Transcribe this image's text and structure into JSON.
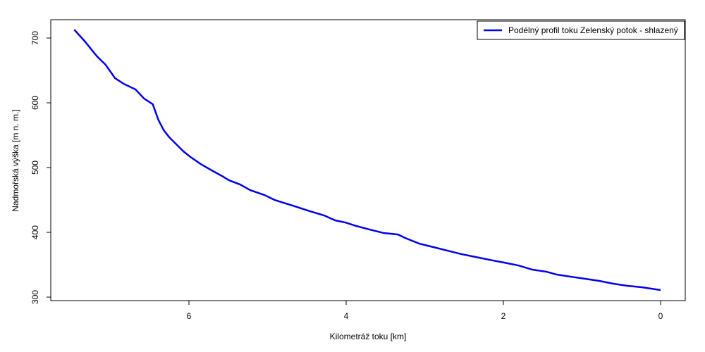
{
  "chart_data": {
    "type": "line",
    "xlabel": "Kilometráž toku [km]",
    "ylabel": "Nadmořská výška [m n. m.]",
    "x": [
      7.46,
      7.33,
      7.17,
      7.06,
      6.94,
      6.83,
      6.68,
      6.57,
      6.46,
      6.39,
      6.32,
      6.25,
      6.16,
      6.07,
      5.98,
      5.85,
      5.71,
      5.58,
      5.49,
      5.35,
      5.22,
      5.04,
      4.91,
      4.68,
      4.46,
      4.28,
      4.14,
      4.01,
      3.87,
      3.7,
      3.52,
      3.34,
      3.25,
      3.07,
      2.89,
      2.71,
      2.53,
      2.31,
      2.13,
      1.99,
      1.81,
      1.63,
      1.45,
      1.32,
      1.14,
      0.96,
      0.78,
      0.6,
      0.42,
      0.24,
      0
    ],
    "series": [
      {
        "name": "Podélný profil toku Zelenský potok - shlazený",
        "color": "#0000ee",
        "values": [
          713.0,
          695.7,
          671.7,
          658.7,
          638.0,
          629.3,
          620.7,
          606.5,
          597.8,
          573.9,
          557.6,
          546.7,
          535.9,
          525.0,
          516.3,
          505.4,
          495.7,
          487.0,
          480.4,
          473.9,
          465.2,
          457.6,
          450.0,
          441.3,
          432.6,
          426.1,
          418.5,
          415.2,
          409.8,
          404.3,
          398.9,
          396.7,
          391.3,
          382.6,
          377.2,
          371.7,
          366.3,
          360.9,
          356.5,
          353.3,
          348.9,
          342.4,
          339.1,
          334.8,
          331.5,
          328.3,
          325.0,
          320.7,
          317.4,
          315.2,
          310.9
        ]
      }
    ],
    "xlim": [
      7.758,
      -0.314
    ],
    "xticks": [
      6,
      4,
      2,
      0
    ],
    "ylim": [
      294.6,
      728.3
    ],
    "yticks": [
      300,
      400,
      500,
      600,
      700
    ],
    "legend": "top-right"
  }
}
